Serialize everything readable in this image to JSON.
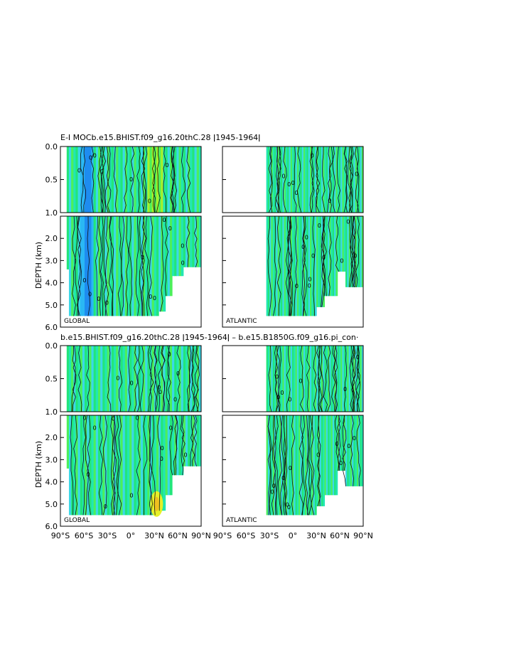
{
  "figure": {
    "top_title": "E-I MOCb.e15.BHIST.f09_g16.20thC.28 ǀ1945-1964ǀ",
    "bottom_title": "b.e15.BHIST.f09_g16.20thC.28 ǀ1945-1964ǀ – b.e15.B1850G.f09_g16.pi_con·"
  },
  "chart_data": [
    {
      "type": "heatmap",
      "title": "E-I MOCb.e15.BHIST.f09_g16.20thC.28 ǀ1945-1964ǀ",
      "ylabel": "DEPTH (km)",
      "region_labels": [
        "GLOBAL",
        "ATLANTIC"
      ],
      "x_ticks": [
        "90°S",
        "60°S",
        "30°S",
        "0°",
        "30°N",
        "60°N",
        "90°N"
      ],
      "xlim": [
        -90,
        90
      ],
      "upper_panel": {
        "ylim": [
          0.0,
          1.0
        ],
        "y_ticks": [
          "0.0",
          "0.5",
          "1.0"
        ]
      },
      "lower_panel": {
        "ylim": [
          1.0,
          6.0
        ],
        "y_ticks": [
          "2.0",
          "3.0",
          "4.0",
          "5.0",
          "6.0"
        ]
      },
      "contour_labels": "0",
      "atlantic_start_lat": -34,
      "colors": {
        "deep_blue": "#1e8cf0",
        "blue": "#2ab8f4",
        "cyan": "#3bd8e8",
        "teal": "#22e6b4",
        "green": "#22e67a",
        "bright_green": "#4cf05a",
        "yellow_green": "#a8f02a"
      }
    },
    {
      "type": "heatmap",
      "title": "b.e15.BHIST.f09_g16.20thC.28 ǀ1945-1964ǀ – b.e15.B1850G.f09_g16.pi_con·",
      "ylabel": "DEPTH (km)",
      "region_labels": [
        "GLOBAL",
        "ATLANTIC"
      ],
      "x_ticks": [
        "90°S",
        "60°S",
        "30°S",
        "0°",
        "30°N",
        "60°N",
        "90°N"
      ],
      "xlim": [
        -90,
        90
      ],
      "upper_panel": {
        "ylim": [
          0.0,
          1.0
        ],
        "y_ticks": [
          "0.0",
          "0.5",
          "1.0"
        ]
      },
      "lower_panel": {
        "ylim": [
          1.0,
          6.0
        ],
        "y_ticks": [
          "2.0",
          "3.0",
          "4.0",
          "5.0",
          "6.0"
        ]
      },
      "contour_labels": "0",
      "atlantic_start_lat": -34,
      "colors": {
        "cyan": "#3bd8e8",
        "teal": "#22e6b4",
        "green": "#22e67a",
        "bright_green": "#4cf05a",
        "yellow": "#e6f028",
        "orange": "#f0c020"
      }
    }
  ]
}
